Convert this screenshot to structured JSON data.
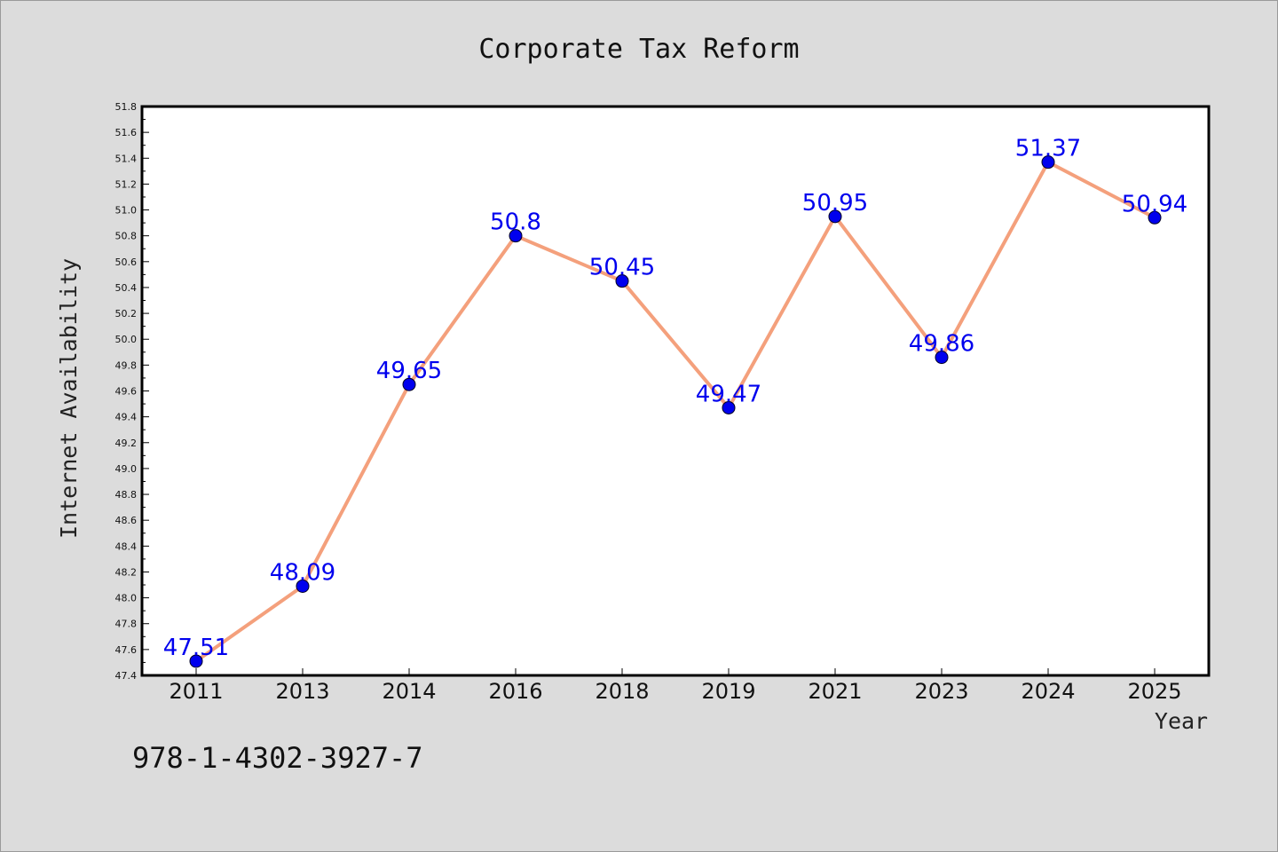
{
  "chart_data": {
    "type": "line",
    "title": "Corporate Tax Reform",
    "xlabel": "Year",
    "ylabel": "Internet Availability",
    "categories": [
      "2011",
      "2013",
      "2014",
      "2016",
      "2018",
      "2019",
      "2021",
      "2023",
      "2024",
      "2025"
    ],
    "series": [
      {
        "values": [
          47.51,
          48.09,
          49.65,
          50.8,
          50.45,
          49.47,
          50.95,
          49.86,
          51.37,
          50.94
        ],
        "data_labels": [
          "47.51",
          "48.09",
          "49.65",
          "50.8",
          "50.45",
          "49.47",
          "50.95",
          "49.86",
          "51.37",
          "50.94"
        ],
        "line_color": "#f4a07c",
        "marker_color": "#0000ee",
        "label_color": "#0000ee"
      }
    ],
    "ylim": [
      47.4,
      51.8
    ],
    "yticks": [
      "47.4",
      "47.6",
      "47.8",
      "48.0",
      "48.2",
      "48.4",
      "48.6",
      "48.8",
      "49.0",
      "49.2",
      "49.4",
      "49.6",
      "49.8",
      "50.0",
      "50.2",
      "50.4",
      "50.6",
      "50.8",
      "51.0",
      "51.2",
      "51.4",
      "51.6",
      "51.8"
    ],
    "grid": false,
    "legend": "none"
  },
  "footer": {
    "isbn": "978-1-4302-3927-7"
  },
  "colors": {
    "background": "#dcdcdc",
    "plot_area": "#ffffff",
    "axis": "#000000"
  }
}
